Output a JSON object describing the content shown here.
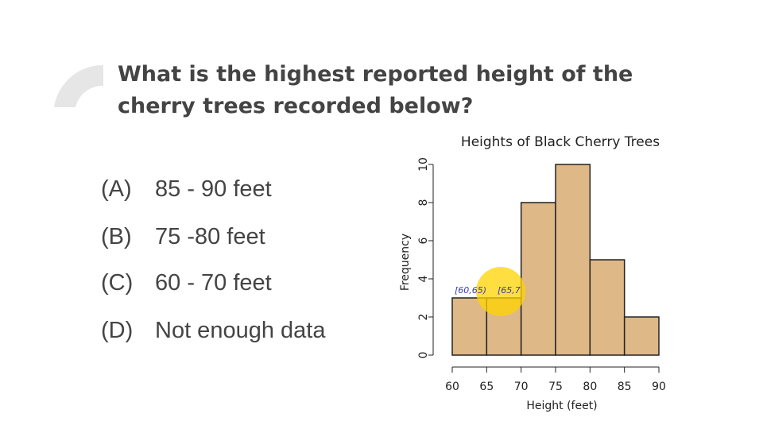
{
  "question": "What is the highest reported height of the cherry trees recorded below?",
  "options": [
    {
      "letter": "(A)",
      "text": "85 - 90 feet"
    },
    {
      "letter": "(B)",
      "text": "75 -80 feet"
    },
    {
      "letter": "(C)",
      "text": "60 - 70 feet"
    },
    {
      "letter": "(D)",
      "text": "Not enough data"
    }
  ],
  "chart_data": {
    "type": "histogram",
    "title": "Heights of Black Cherry Trees",
    "x_label": "Height (feet)",
    "y_label": "Frequency",
    "bins": [
      60,
      65,
      70,
      75,
      80,
      85,
      90
    ],
    "values": [
      3,
      3,
      8,
      10,
      5,
      2
    ],
    "color": "#deb887",
    "xlim": [
      60,
      90
    ],
    "xticks": [
      60,
      65,
      70,
      75,
      80,
      85,
      90
    ],
    "ylim": [
      0,
      10
    ],
    "yticks": [
      0,
      2,
      4,
      6,
      8,
      10
    ],
    "annotations": [
      "[60,65)",
      "[65,7"
    ]
  }
}
